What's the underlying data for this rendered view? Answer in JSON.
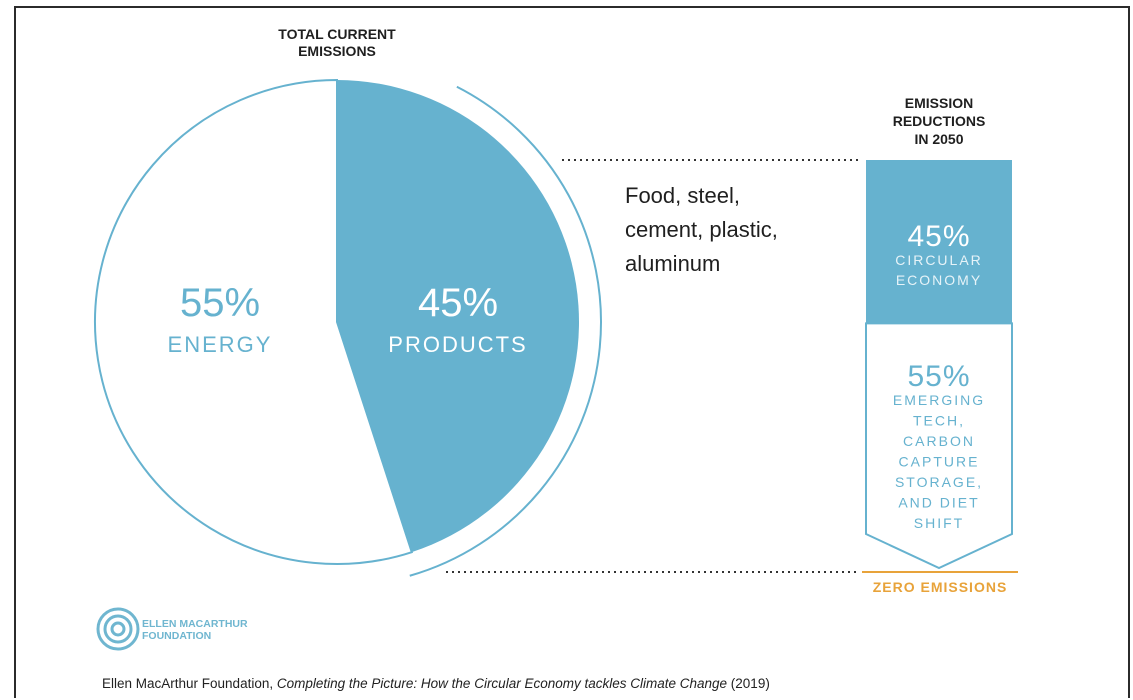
{
  "colors": {
    "accent": "#66b2cf",
    "accent_light": "#6fb6d0",
    "zero_line": "#e8a33a",
    "text_dark": "#1f1f1f"
  },
  "chart_data": {
    "type": "pie",
    "title": "TOTAL CURRENT\nEMISSIONS",
    "slices": [
      {
        "label": "ENERGY",
        "value": 55,
        "value_label": "55%",
        "color": "#ffffff"
      },
      {
        "label": "PRODUCTS",
        "value": 45,
        "value_label": "45%",
        "color": "#66b2cf"
      }
    ],
    "annotation": "Food, steel,\ncement, plastic,\naluminum",
    "reductions": {
      "title": "EMISSION\nREDUCTIONS\nIN 2050",
      "segments": [
        {
          "value": 45,
          "value_label": "45%",
          "label": "CIRCULAR\nECONOMY"
        },
        {
          "value": 55,
          "value_label": "55%",
          "label": "EMERGING\nTECH,\nCARBON\nCAPTURE\nSTORAGE,\nAND DIET\nSHIFT"
        }
      ],
      "end_label": "ZERO EMISSIONS"
    }
  },
  "logo": {
    "line1": "ELLEN MACARTHUR",
    "line2": "FOUNDATION"
  },
  "caption": {
    "prefix": "Ellen MacArthur Foundation, ",
    "italic": "Completing the Picture: How the Circular Economy tackles Climate Change",
    "suffix": " (2019)"
  }
}
